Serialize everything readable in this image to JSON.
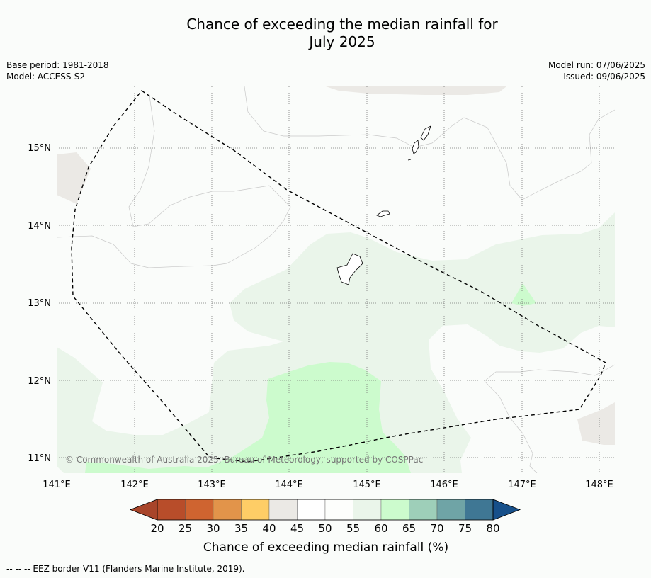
{
  "title_line1": "Chance of exceeding the median rainfall for",
  "title_line2": "July 2025",
  "meta_left": [
    "Base period: 1981-2018",
    "Model: ACCESS-S2"
  ],
  "meta_right": [
    "Model run: 07/06/2025",
    "Issued: 09/06/2025"
  ],
  "map": {
    "lon_labels": [
      "141°E",
      "142°E",
      "143°E",
      "144°E",
      "145°E",
      "146°E",
      "147°E",
      "148°E"
    ],
    "lat_labels": [
      "15°N",
      "14°N",
      "13°N",
      "12°N",
      "11°N"
    ],
    "copyright": "© Commonwealth of Australia 2025, Bureau of Meteorology, supported by COSPPac"
  },
  "colorbar": {
    "ticks": [
      "20",
      "25",
      "30",
      "35",
      "40",
      "45",
      "50",
      "55",
      "60",
      "65",
      "70",
      "75",
      "80"
    ],
    "colors": [
      "#a8452a",
      "#b84d2a",
      "#cf6430",
      "#e2944a",
      "#fecd66",
      "#ebe9e5",
      "#ffffff",
      "#fdfefc",
      "#eaf5ea",
      "#ccfbcd",
      "#9ecfb9",
      "#6fa4a6",
      "#3f7794",
      "#17508a"
    ],
    "label": "Chance of exceeding median rainfall (%)"
  },
  "footer": "--  --  -- EEZ border V11 (Flanders Marine Institute, 2019)."
}
